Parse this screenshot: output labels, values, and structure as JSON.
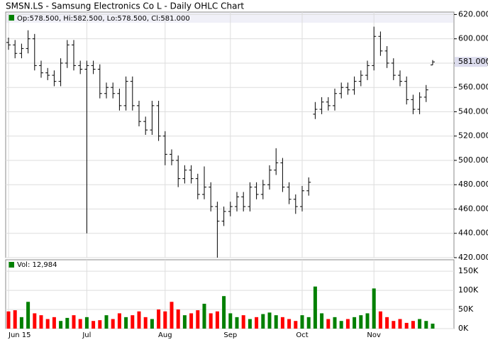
{
  "chart_data": {
    "type": "ohlc",
    "title": "SMSN.LS - Samsung Electronics Co L - Daily OHLC Chart",
    "info": "Op:578.500, Hi:582.500, Lo:578.500, Cl:581.000",
    "last_label": "581.000",
    "categories": [
      "Jun 15",
      null,
      null,
      null,
      null,
      null,
      null,
      null,
      null,
      null,
      null,
      null,
      "Jul",
      null,
      null,
      null,
      null,
      null,
      null,
      null,
      null,
      null,
      null,
      null,
      "Aug",
      null,
      null,
      null,
      null,
      null,
      null,
      null,
      null,
      null,
      "Sep",
      null,
      null,
      null,
      null,
      null,
      null,
      null,
      null,
      null,
      null,
      "Oct",
      null,
      null,
      null,
      null,
      null,
      null,
      null,
      null,
      null,
      null,
      "Nov",
      null,
      null,
      null,
      null,
      null,
      null,
      null,
      null,
      null
    ],
    "open": [
      597,
      595,
      588,
      592,
      600,
      578,
      572,
      570,
      565,
      580,
      595,
      578,
      575,
      578,
      575,
      555,
      560,
      555,
      545,
      565,
      545,
      532,
      525,
      545,
      520,
      505,
      500,
      485,
      492,
      485,
      472,
      478,
      462,
      450,
      458,
      462,
      470,
      462,
      478,
      472,
      480,
      492,
      498,
      478,
      468,
      462,
      475,
      538,
      542,
      548,
      545,
      555,
      560,
      558,
      565,
      570,
      578,
      602,
      590,
      580,
      570,
      565,
      550,
      542,
      552,
      578.5
    ],
    "high": [
      601,
      599,
      596,
      607,
      604,
      582,
      576,
      574,
      584,
      599,
      599,
      582,
      582,
      582,
      579,
      564,
      564,
      559,
      569,
      569,
      549,
      536,
      549,
      549,
      524,
      509,
      504,
      496,
      496,
      489,
      495,
      482,
      466,
      462,
      466,
      474,
      474,
      482,
      482,
      484,
      496,
      510,
      502,
      482,
      472,
      479,
      486,
      548,
      552,
      552,
      559,
      564,
      564,
      569,
      574,
      582,
      610,
      606,
      594,
      584,
      574,
      569,
      554,
      556,
      562,
      582.5
    ],
    "low": [
      591,
      584,
      584,
      588,
      574,
      568,
      566,
      561,
      561,
      576,
      574,
      571,
      440,
      571,
      551,
      551,
      551,
      541,
      541,
      541,
      528,
      521,
      521,
      516,
      496,
      496,
      478,
      481,
      481,
      468,
      468,
      458,
      420,
      446,
      454,
      458,
      458,
      458,
      468,
      468,
      476,
      488,
      474,
      464,
      456,
      458,
      471,
      534,
      538,
      541,
      541,
      551,
      554,
      554,
      561,
      566,
      574,
      586,
      576,
      566,
      561,
      546,
      538,
      538,
      548,
      578.5
    ],
    "close": [
      595,
      588,
      592,
      600,
      578,
      572,
      570,
      565,
      580,
      595,
      578,
      575,
      578,
      575,
      555,
      560,
      555,
      545,
      565,
      545,
      532,
      525,
      545,
      520,
      505,
      500,
      485,
      492,
      485,
      472,
      478,
      462,
      450,
      458,
      462,
      470,
      462,
      478,
      472,
      480,
      492,
      498,
      478,
      468,
      462,
      475,
      482,
      542,
      548,
      545,
      555,
      560,
      558,
      565,
      570,
      578,
      602,
      590,
      580,
      570,
      565,
      550,
      542,
      552,
      558,
      581
    ],
    "ylim": [
      420,
      622
    ],
    "yticks": [
      {
        "value": 420,
        "label": "420.000"
      },
      {
        "value": 440,
        "label": "440.000"
      },
      {
        "value": 460,
        "label": "460.000"
      },
      {
        "value": 480,
        "label": "480.000"
      },
      {
        "value": 500,
        "label": "500.000"
      },
      {
        "value": 520,
        "label": "520.000"
      },
      {
        "value": 540,
        "label": "540.000"
      },
      {
        "value": 560,
        "label": "560.000"
      },
      {
        "value": 580,
        "label": "580.000"
      },
      {
        "value": 600,
        "label": "600.000"
      },
      {
        "value": 620,
        "label": "620.000"
      }
    ],
    "bar_color": "#000000",
    "grid": true,
    "volume": {
      "label": "Vol: 12,984",
      "values": [
        45000,
        48000,
        30000,
        70000,
        40000,
        35000,
        25000,
        30000,
        20000,
        28000,
        35000,
        25000,
        30000,
        20000,
        22000,
        35000,
        25000,
        40000,
        30000,
        35000,
        45000,
        30000,
        25000,
        50000,
        45000,
        70000,
        50000,
        35000,
        40000,
        48000,
        65000,
        40000,
        45000,
        85000,
        40000,
        30000,
        35000,
        25000,
        30000,
        38000,
        42000,
        35000,
        30000,
        25000,
        20000,
        35000,
        30000,
        110000,
        40000,
        25000,
        30000,
        20000,
        25000,
        30000,
        35000,
        40000,
        105000,
        45000,
        30000,
        20000,
        25000,
        15000,
        20000,
        25000,
        20000,
        12984
      ],
      "up_color": "#008000",
      "down_color": "#ff0000",
      "ylim": [
        0,
        180000
      ],
      "yticks": [
        {
          "value": 0,
          "label": "0K"
        },
        {
          "value": 50000,
          "label": "50K"
        },
        {
          "value": 100000,
          "label": "100K"
        },
        {
          "value": 150000,
          "label": "150K"
        }
      ]
    }
  }
}
